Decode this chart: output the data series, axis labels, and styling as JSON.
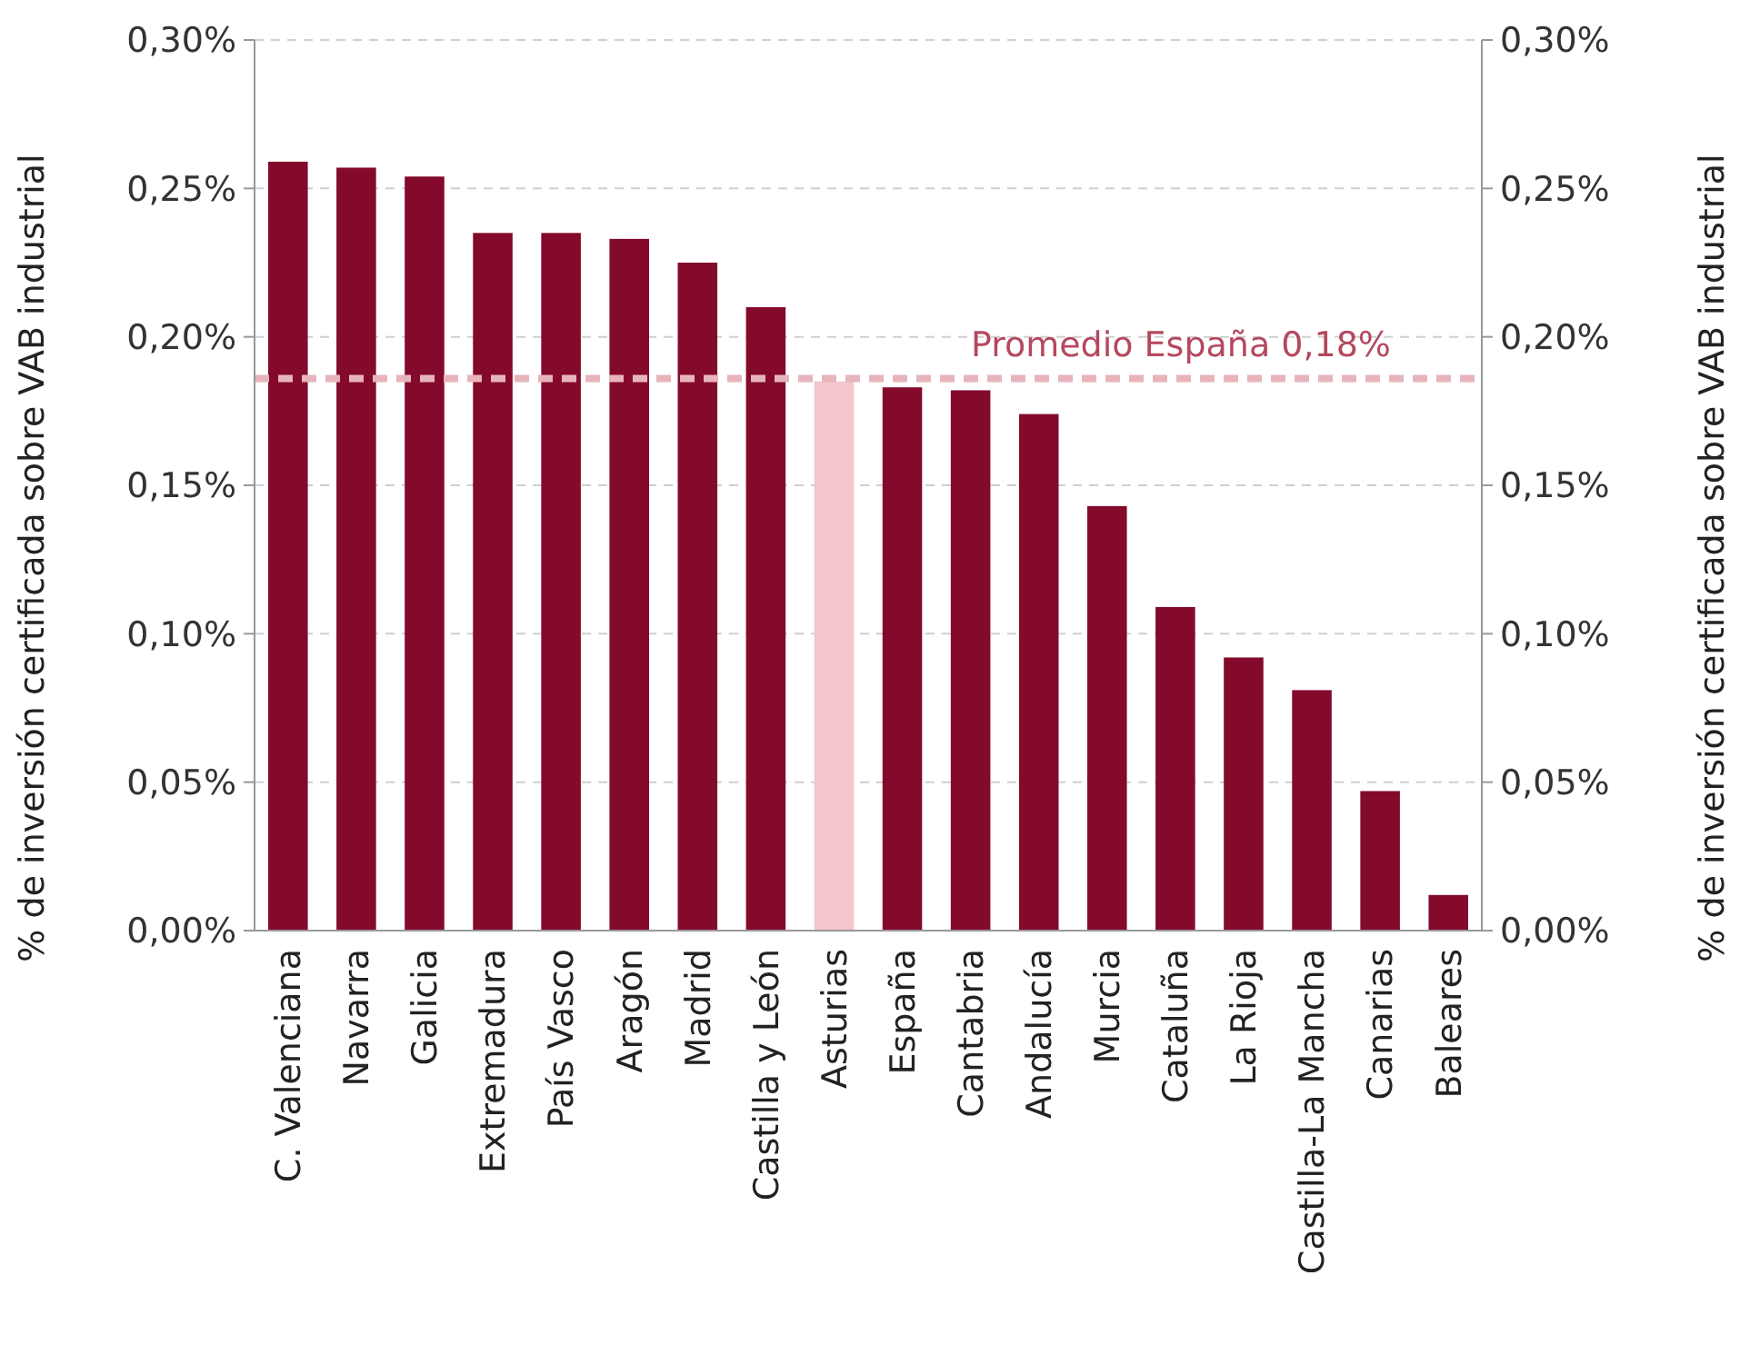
{
  "chart_data": {
    "type": "bar",
    "ylabel": "% de inversión certificada sobre VAB industrial",
    "y2label": "% de inversión certificada sobre VAB industrial",
    "categories": [
      "C. Valenciana",
      "Navarra",
      "Galicia",
      "Extremadura",
      "País Vasco",
      "Aragón",
      "Madrid",
      "Castilla y León",
      "Asturias",
      "España",
      "Cantabria",
      "Andalucía",
      "Murcia",
      "Cataluña",
      "La Rioja",
      "Castilla-La Mancha",
      "Canarias",
      "Baleares"
    ],
    "values": [
      0.259,
      0.257,
      0.254,
      0.235,
      0.235,
      0.233,
      0.225,
      0.21,
      0.185,
      0.183,
      0.182,
      0.174,
      0.143,
      0.109,
      0.092,
      0.081,
      0.047,
      0.012
    ],
    "colors": [
      "#830a2b",
      "#830a2b",
      "#830a2b",
      "#830a2b",
      "#830a2b",
      "#830a2b",
      "#830a2b",
      "#830a2b",
      "#f2c6cc",
      "#830a2b",
      "#830a2b",
      "#830a2b",
      "#830a2b",
      "#830a2b",
      "#830a2b",
      "#830a2b",
      "#830a2b",
      "#830a2b"
    ],
    "ylim": [
      0,
      0.3
    ],
    "yticks": [
      {
        "value": 0,
        "label": "0,00%"
      },
      {
        "value": 0.05,
        "label": "0,05%"
      },
      {
        "value": 0.1,
        "label": "0,10%"
      },
      {
        "value": 0.15,
        "label": "0,15%"
      },
      {
        "value": 0.2,
        "label": "0,20%"
      },
      {
        "value": 0.25,
        "label": "0,25%"
      },
      {
        "value": 0.3,
        "label": "0,30%"
      }
    ],
    "y2lim": [
      0,
      0.3
    ],
    "y2ticks": [
      {
        "value": 0,
        "label": "0,00%"
      },
      {
        "value": 0.05,
        "label": "0,05%"
      },
      {
        "value": 0.1,
        "label": "0,10%"
      },
      {
        "value": 0.15,
        "label": "0,15%"
      },
      {
        "value": 0.2,
        "label": "0,20%"
      },
      {
        "value": 0.25,
        "label": "0,25%"
      },
      {
        "value": 0.3,
        "label": "0,30%"
      }
    ],
    "grid": "y",
    "ref_lines": [
      {
        "axis": "y",
        "value": 0.186,
        "label": "Promedio España 0,18%",
        "color": "#e8b4bb",
        "line_style": "dashed"
      }
    ]
  }
}
